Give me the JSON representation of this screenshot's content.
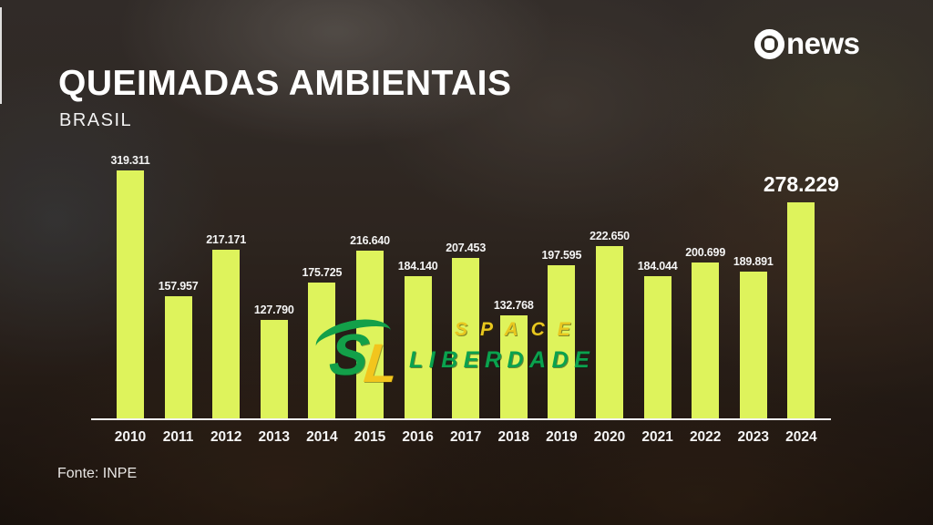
{
  "header": {
    "title": "QUEIMADAS AMBIENTAIS",
    "subtitle": "BRASIL"
  },
  "brand": {
    "logo_icon": "globo-sphere",
    "name": "news"
  },
  "source_text": "Fonte: INPE",
  "watermark": {
    "monogram_s": "S",
    "monogram_l": "L",
    "line1": "SPACE",
    "line2": "LIBERDADE",
    "yellow": "#f2c51d",
    "green": "#0aa24e"
  },
  "chart_data": {
    "type": "bar",
    "title": "QUEIMADAS AMBIENTAIS",
    "subtitle": "BRASIL",
    "source": "Fonte: INPE",
    "categories": [
      "2010",
      "2011",
      "2012",
      "2013",
      "2014",
      "2015",
      "2016",
      "2017",
      "2018",
      "2019",
      "2020",
      "2021",
      "2022",
      "2023",
      "2024"
    ],
    "values": [
      319311,
      157957,
      217171,
      127790,
      175725,
      216640,
      184140,
      207453,
      132768,
      197595,
      222650,
      184044,
      200699,
      189891,
      278229
    ],
    "value_labels": [
      "319.311",
      "157.957",
      "217.171",
      "127.790",
      "175.725",
      "216.640",
      "184.140",
      "207.453",
      "132.768",
      "197.595",
      "222.650",
      "184.044",
      "200.699",
      "189.891",
      "278.229"
    ],
    "highlight_index": 14,
    "bar_color": "#def35c",
    "axis_color": "#f2f2f2",
    "label_color": "#f5f5f5",
    "xlabel": "",
    "ylabel": "",
    "ylim": [
      0,
      330000
    ],
    "grid": false,
    "legend": "none"
  }
}
